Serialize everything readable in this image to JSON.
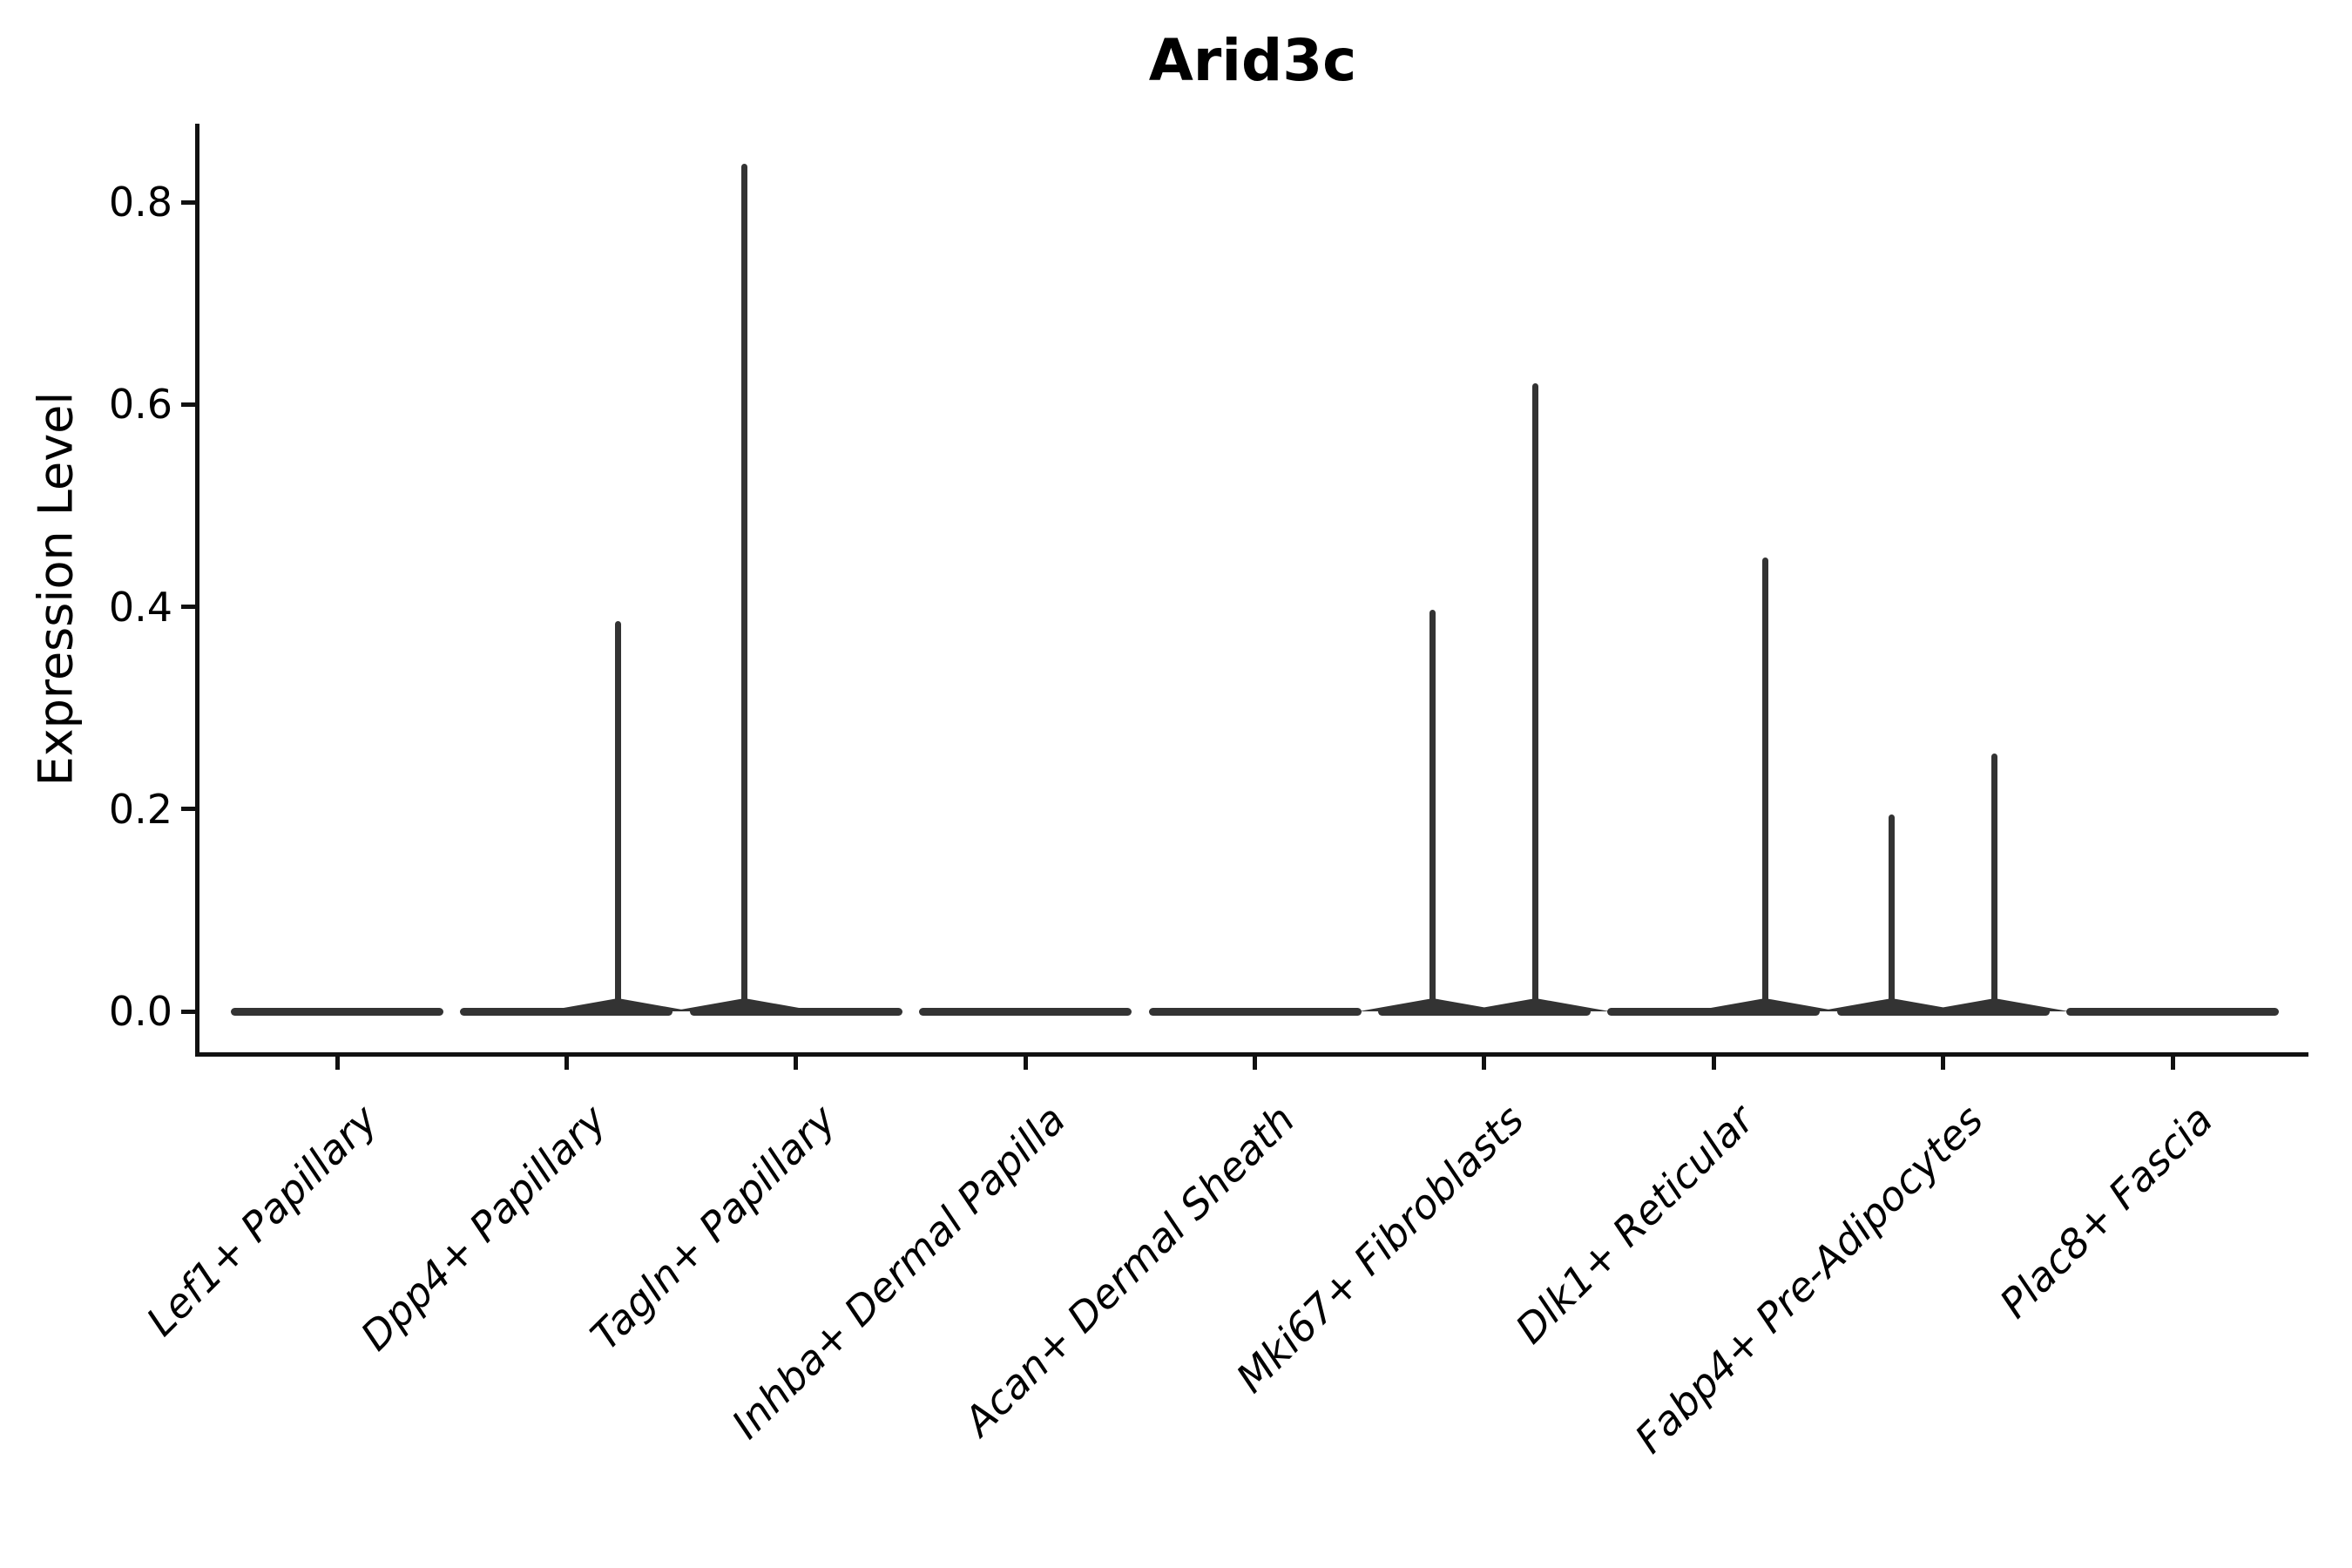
{
  "title": "Arid3c",
  "ylabel": "Expression Level",
  "chart_data": {
    "type": "violin",
    "title": "Arid3c",
    "xlabel": "",
    "ylabel": "Expression Level",
    "ylim": [
      -0.04,
      0.877
    ],
    "yticks": [
      0.0,
      0.2,
      0.4,
      0.6,
      0.8
    ],
    "ytick_labels": [
      "0.0",
      "0.2",
      "0.4",
      "0.6",
      "0.8"
    ],
    "grid": false,
    "legend": "none",
    "categories": [
      "Lef1+ Papillary",
      "Dpp4+ Papillary",
      "Tagln+ Papillary",
      "Inhba+ Dermal Papilla",
      "Acan+ Dermal Sheath",
      "Mki67+ Fibroblasts",
      "Dlk1+ Reticular",
      "Fabp4+ Pre-Adipocytes",
      "Plac8+ Fascia"
    ],
    "violins": [
      {
        "category": "Lef1+ Papillary",
        "base_value": 0.0,
        "spikes": []
      },
      {
        "category": "Dpp4+ Papillary",
        "base_value": 0.0,
        "spikes": [
          {
            "side": "right",
            "value": 0.386
          }
        ]
      },
      {
        "category": "Tagln+ Papillary",
        "base_value": 0.0,
        "spikes": [
          {
            "side": "left",
            "value": 0.838
          }
        ]
      },
      {
        "category": "Inhba+ Dermal Papilla",
        "base_value": 0.0,
        "spikes": []
      },
      {
        "category": "Acan+ Dermal Sheath",
        "base_value": 0.0,
        "spikes": []
      },
      {
        "category": "Mki67+ Fibroblasts",
        "base_value": 0.0,
        "spikes": [
          {
            "side": "left",
            "value": 0.397
          },
          {
            "side": "right",
            "value": 0.621
          }
        ]
      },
      {
        "category": "Dlk1+ Reticular",
        "base_value": 0.0,
        "spikes": [
          {
            "side": "right",
            "value": 0.449
          }
        ]
      },
      {
        "category": "Fabp4+ Pre-Adipocytes",
        "base_value": 0.0,
        "spikes": [
          {
            "side": "left",
            "value": 0.195
          },
          {
            "side": "right",
            "value": 0.255
          }
        ]
      },
      {
        "category": "Plac8+ Fascia",
        "base_value": 0.0,
        "spikes": []
      }
    ],
    "colors": {
      "violin": "#333333",
      "axis": "#111111",
      "text": "#000000"
    }
  }
}
